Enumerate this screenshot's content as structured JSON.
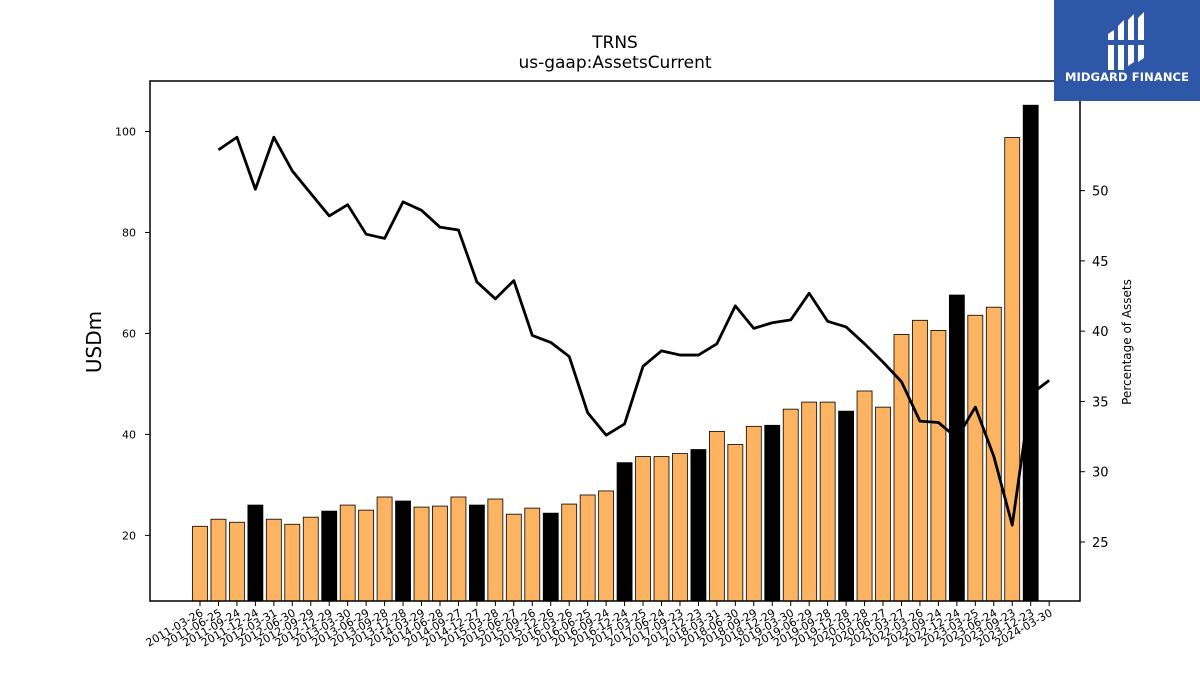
{
  "logo": {
    "text": "MIDGARD FINANCE"
  },
  "chart_data": {
    "type": "bar",
    "title": "TRNS",
    "subtitle": "us-gaap:AssetsCurrent",
    "ylabel": "USDm",
    "y2label": "Percentage of Assets",
    "ylim": [
      7,
      110
    ],
    "y2lim": [
      20.8,
      57.8
    ],
    "yticks": [
      20,
      40,
      60,
      80,
      100
    ],
    "y2ticks": [
      25,
      30,
      35,
      40,
      45,
      50
    ],
    "grid": false,
    "colors": {
      "regular": "#fdb462",
      "highlight": "#000000",
      "line": "#000000"
    },
    "categories": [
      "2011-03-26",
      "2011-06-25",
      "2011-09-24",
      "2011-12-24",
      "2012-03-31",
      "2012-06-30",
      "2012-09-29",
      "2012-12-29",
      "2013-03-30",
      "2013-06-29",
      "2013-09-28",
      "2013-12-28",
      "2014-03-29",
      "2014-06-28",
      "2014-09-27",
      "2014-12-27",
      "2015-03-28",
      "2015-06-27",
      "2015-09-26",
      "2015-12-26",
      "2016-03-26",
      "2016-06-25",
      "2016-09-24",
      "2016-12-24",
      "2017-03-25",
      "2017-06-24",
      "2017-09-23",
      "2017-12-23",
      "2018-03-31",
      "2018-06-30",
      "2018-09-29",
      "2018-12-29",
      "2019-03-30",
      "2019-06-29",
      "2019-09-28",
      "2019-12-28",
      "2020-03-28",
      "2020-06-27",
      "2021-03-27",
      "2022-03-26",
      "2022-09-24",
      "2022-12-24",
      "2023-03-25",
      "2023-06-24",
      "2023-09-23",
      "2023-12-23",
      "2024-03-30"
    ],
    "series": [
      {
        "kind": "bar",
        "values": [
          21.8,
          23.2,
          22.6,
          26,
          23.2,
          22.2,
          23.6,
          24.8,
          26,
          25,
          27.6,
          26.8,
          25.6,
          25.8,
          27.6,
          26,
          27.2,
          24.2,
          25.4,
          24.4,
          26.2,
          28,
          28.8,
          34.4,
          35.6,
          35.6,
          36.2,
          37,
          40.6,
          38,
          41.6,
          41.8,
          45,
          46.4,
          46.4,
          44.6,
          48.6,
          45.4,
          59.8,
          62.6,
          60.6,
          67.6,
          63.6,
          65.2,
          98.8,
          105.2,
          null
        ],
        "highlight": [
          false,
          false,
          false,
          true,
          false,
          false,
          false,
          true,
          false,
          false,
          false,
          true,
          false,
          false,
          false,
          true,
          false,
          false,
          false,
          true,
          false,
          false,
          false,
          true,
          false,
          false,
          false,
          true,
          false,
          false,
          false,
          true,
          false,
          false,
          false,
          true,
          false,
          false,
          false,
          false,
          false,
          true,
          false,
          false,
          false,
          true,
          false
        ]
      },
      {
        "kind": "line",
        "axis": "right",
        "values": [
          null,
          52.9,
          53.8,
          50.1,
          53.8,
          51.4,
          49.8,
          48.2,
          49,
          46.9,
          46.6,
          49.2,
          48.6,
          47.4,
          47.2,
          43.5,
          42.3,
          43.6,
          39.7,
          39.2,
          38.2,
          34.2,
          32.6,
          33.4,
          37.5,
          38.6,
          38.3,
          38.3,
          39.1,
          41.8,
          40.2,
          40.6,
          40.8,
          42.7,
          40.7,
          40.3,
          39.1,
          37.8,
          36.4,
          33.6,
          33.5,
          32.4,
          34.6,
          31.1,
          26.2,
          35.5,
          36.5
        ]
      }
    ]
  }
}
